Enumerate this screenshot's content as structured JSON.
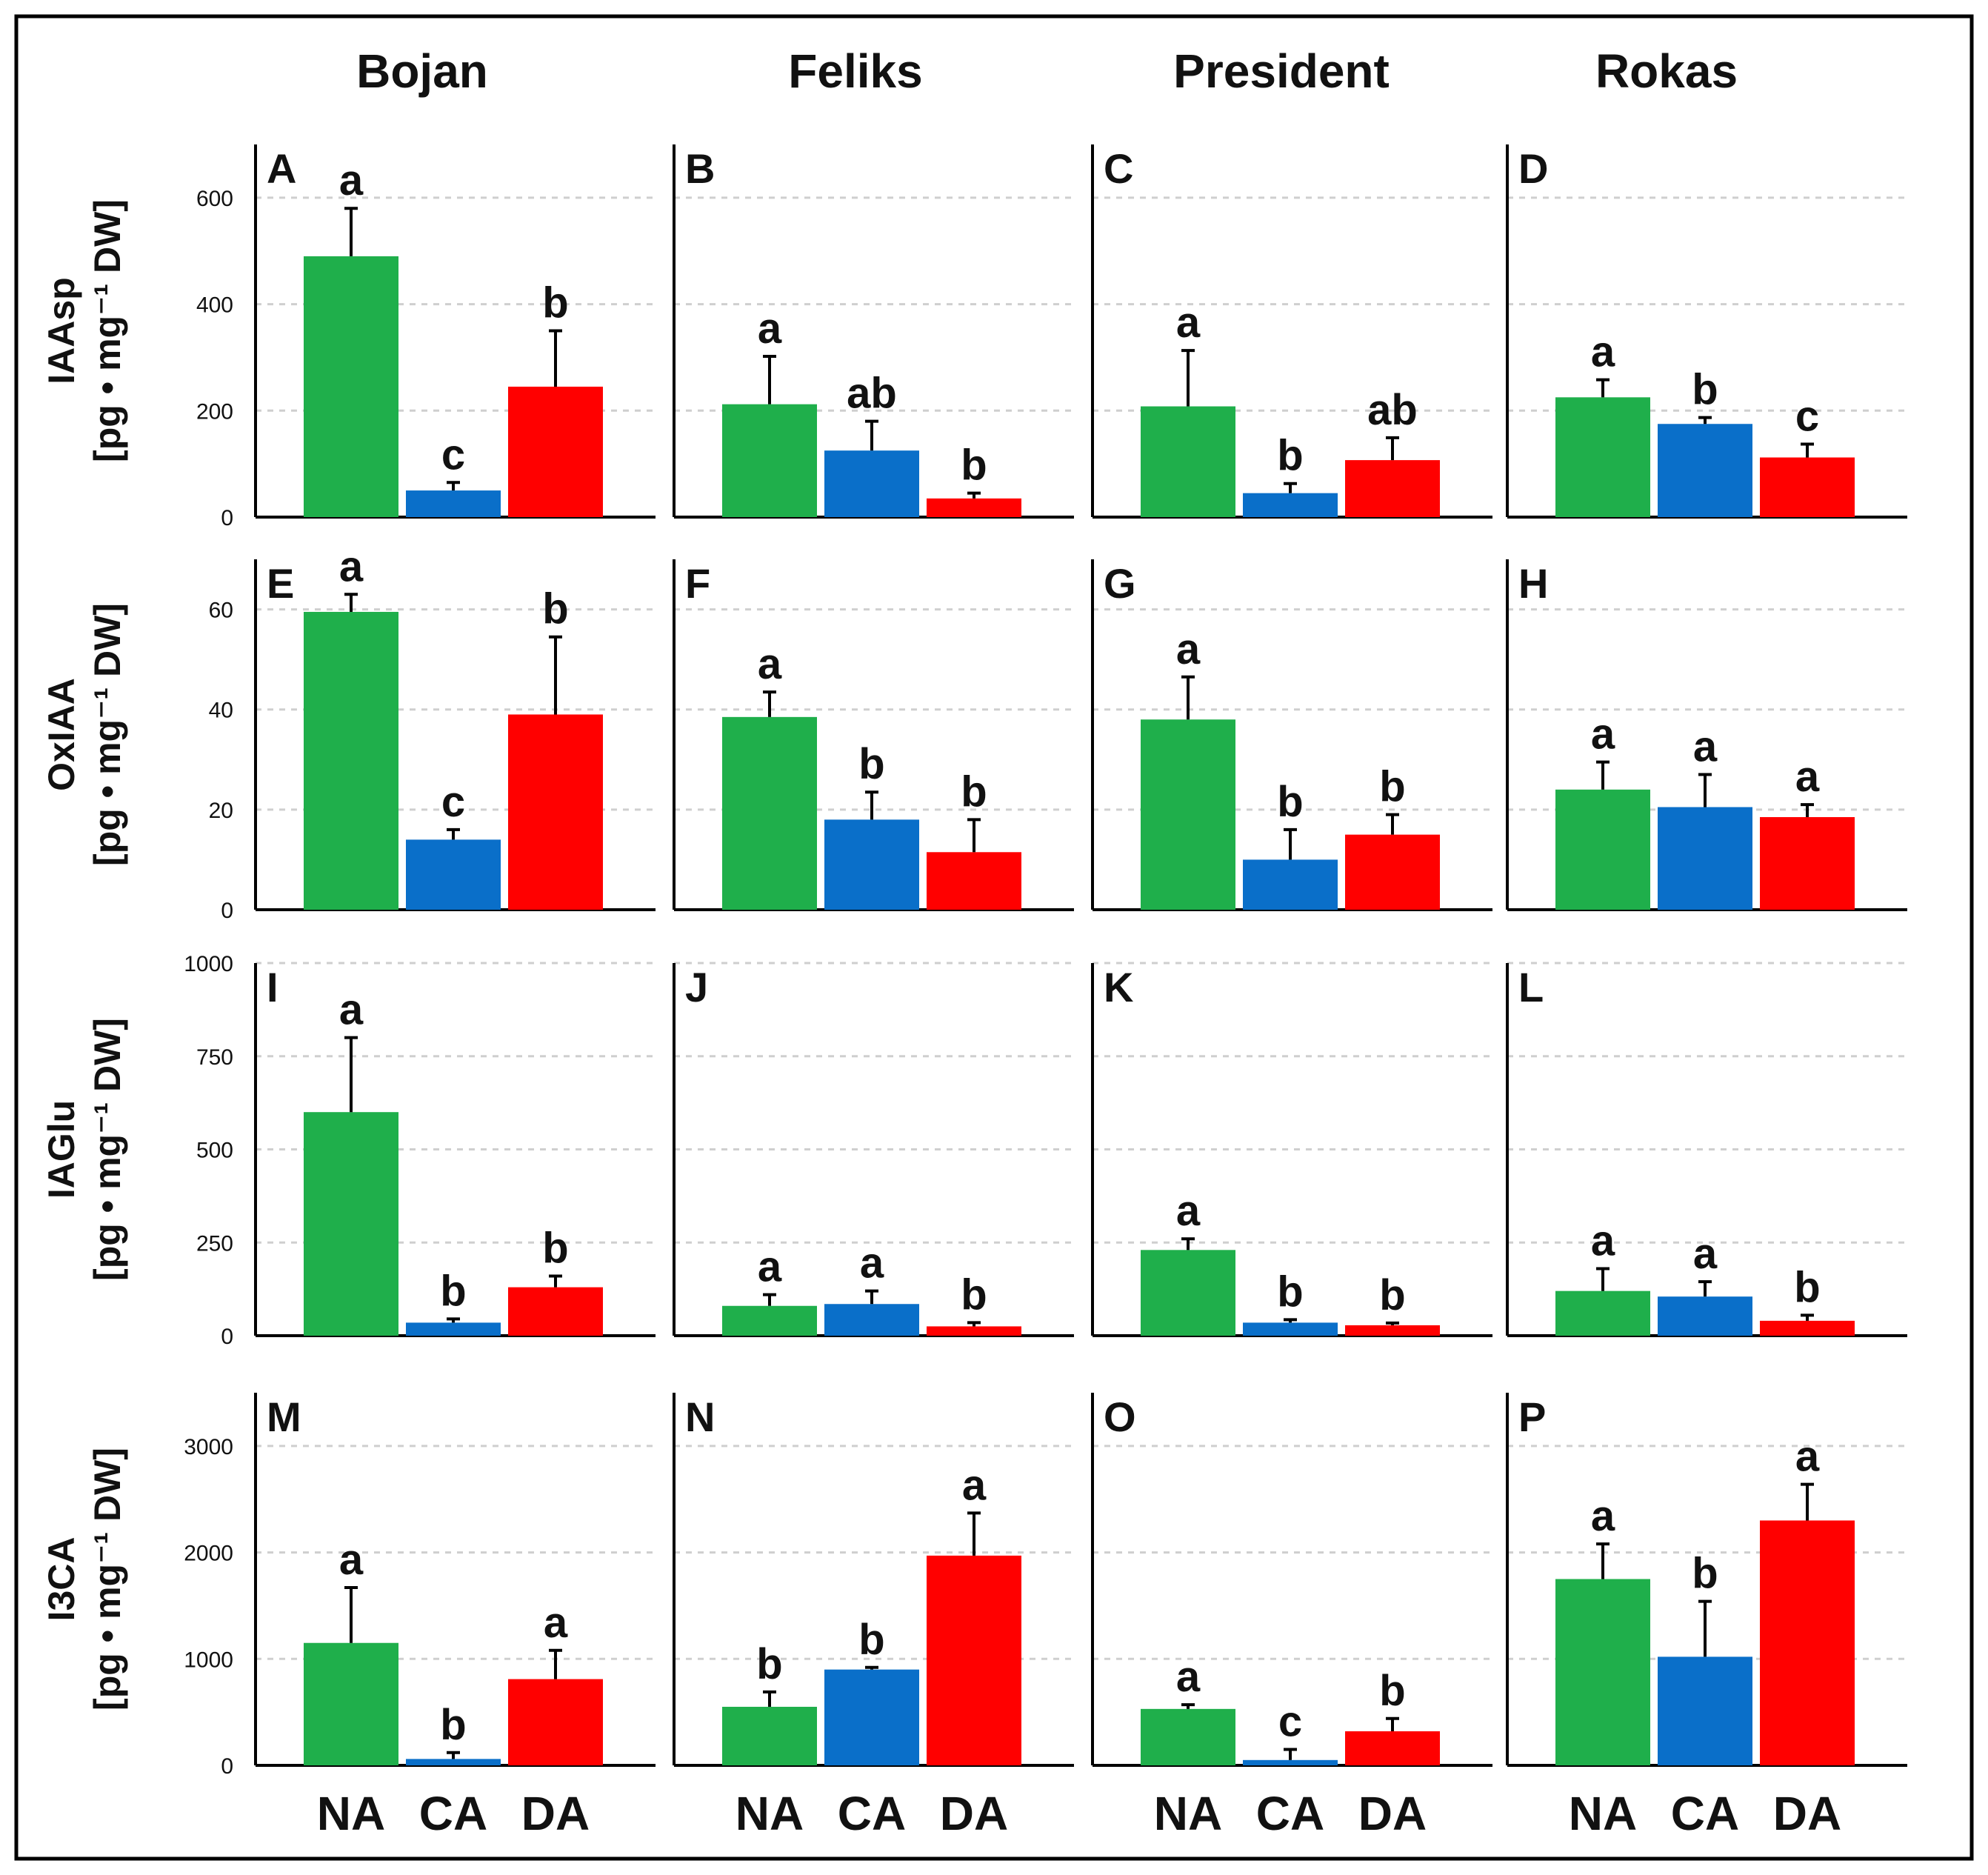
{
  "chart_data": {
    "type": "bar",
    "columns": [
      "Bojan",
      "Feliks",
      "President",
      "Rokas"
    ],
    "categories": [
      "NA",
      "CA",
      "DA"
    ],
    "colors": {
      "NA": "#1FAF4B",
      "CA": "#0A6FC9",
      "DA": "#FF0000"
    },
    "rows": [
      {
        "ylabel": "IAAsp",
        "unit": "[pg • mg⁻¹ DW]",
        "ylim": [
          0,
          700
        ],
        "ticks": [
          0,
          200,
          400,
          600
        ],
        "tick_labels": [
          "0",
          "200",
          "400",
          "600"
        ],
        "panels": [
          {
            "letter": "A",
            "values": [
              490,
              50,
              245
            ],
            "errors": [
              90,
              15,
              105
            ],
            "sig": [
              "a",
              "c",
              "b"
            ]
          },
          {
            "letter": "B",
            "values": [
              212,
              125,
              35
            ],
            "errors": [
              90,
              55,
              10
            ],
            "sig": [
              "a",
              "ab",
              "b"
            ]
          },
          {
            "letter": "C",
            "values": [
              208,
              45,
              107
            ],
            "errors": [
              105,
              18,
              42
            ],
            "sig": [
              "a",
              "b",
              "ab"
            ]
          },
          {
            "letter": "D",
            "values": [
              225,
              175,
              112
            ],
            "errors": [
              33,
              12,
              25
            ],
            "sig": [
              "a",
              "b",
              "c"
            ]
          }
        ]
      },
      {
        "ylabel": "OxIAA",
        "unit": "[pg • mg⁻¹ DW]",
        "ylim": [
          0,
          70
        ],
        "ticks": [
          0,
          20,
          40,
          60
        ],
        "tick_labels": [
          "0",
          "20",
          "40",
          "60"
        ],
        "panels": [
          {
            "letter": "E",
            "values": [
              59.5,
              14,
              39
            ],
            "errors": [
              3.5,
              2,
              15.5
            ],
            "sig": [
              "a",
              "c",
              "b"
            ]
          },
          {
            "letter": "F",
            "values": [
              38.5,
              18,
              11.5
            ],
            "errors": [
              5,
              5.5,
              6.5
            ],
            "sig": [
              "a",
              "b",
              "b"
            ]
          },
          {
            "letter": "G",
            "values": [
              38,
              10,
              15
            ],
            "errors": [
              8.5,
              6,
              4
            ],
            "sig": [
              "a",
              "b",
              "b"
            ]
          },
          {
            "letter": "H",
            "values": [
              24,
              20.5,
              18.5
            ],
            "errors": [
              5.5,
              6.5,
              2.5
            ],
            "sig": [
              "a",
              "a",
              "a"
            ]
          }
        ]
      },
      {
        "ylabel": "IAGlu",
        "unit": "[pg • mg⁻¹ DW]",
        "ylim": [
          0,
          1000
        ],
        "ticks": [
          0,
          250,
          500,
          750,
          1000
        ],
        "tick_labels": [
          "0",
          "250",
          "500",
          "750",
          "1000"
        ],
        "panels": [
          {
            "letter": "I",
            "values": [
              600,
              35,
              130
            ],
            "errors": [
              200,
              10,
              30
            ],
            "sig": [
              "a",
              "b",
              "b"
            ]
          },
          {
            "letter": "J",
            "values": [
              80,
              85,
              25
            ],
            "errors": [
              30,
              35,
              10
            ],
            "sig": [
              "a",
              "a",
              "b"
            ]
          },
          {
            "letter": "K",
            "values": [
              230,
              35,
              28
            ],
            "errors": [
              30,
              8,
              6
            ],
            "sig": [
              "a",
              "b",
              "b"
            ]
          },
          {
            "letter": "L",
            "values": [
              120,
              105,
              40
            ],
            "errors": [
              60,
              40,
              15
            ],
            "sig": [
              "a",
              "a",
              "b"
            ]
          }
        ]
      },
      {
        "ylabel": "I3CA",
        "unit": "[pg • mg⁻¹ DW]",
        "ylim": [
          0,
          3500
        ],
        "ticks": [
          0,
          1000,
          2000,
          3000
        ],
        "tick_labels": [
          "0",
          "1000",
          "2000",
          "3000"
        ],
        "panels": [
          {
            "letter": "M",
            "values": [
              1150,
              60,
              810
            ],
            "errors": [
              520,
              60,
              270
            ],
            "sig": [
              "a",
              "b",
              "a"
            ]
          },
          {
            "letter": "N",
            "values": [
              550,
              900,
              1970
            ],
            "errors": [
              140,
              20,
              400
            ],
            "sig": [
              "b",
              "b",
              "a"
            ]
          },
          {
            "letter": "O",
            "values": [
              530,
              50,
              320
            ],
            "errors": [
              40,
              100,
              120
            ],
            "sig": [
              "a",
              "c",
              "b"
            ]
          },
          {
            "letter": "P",
            "values": [
              1750,
              1020,
              2300
            ],
            "errors": [
              330,
              520,
              340
            ],
            "sig": [
              "a",
              "b",
              "a"
            ]
          }
        ]
      }
    ]
  }
}
